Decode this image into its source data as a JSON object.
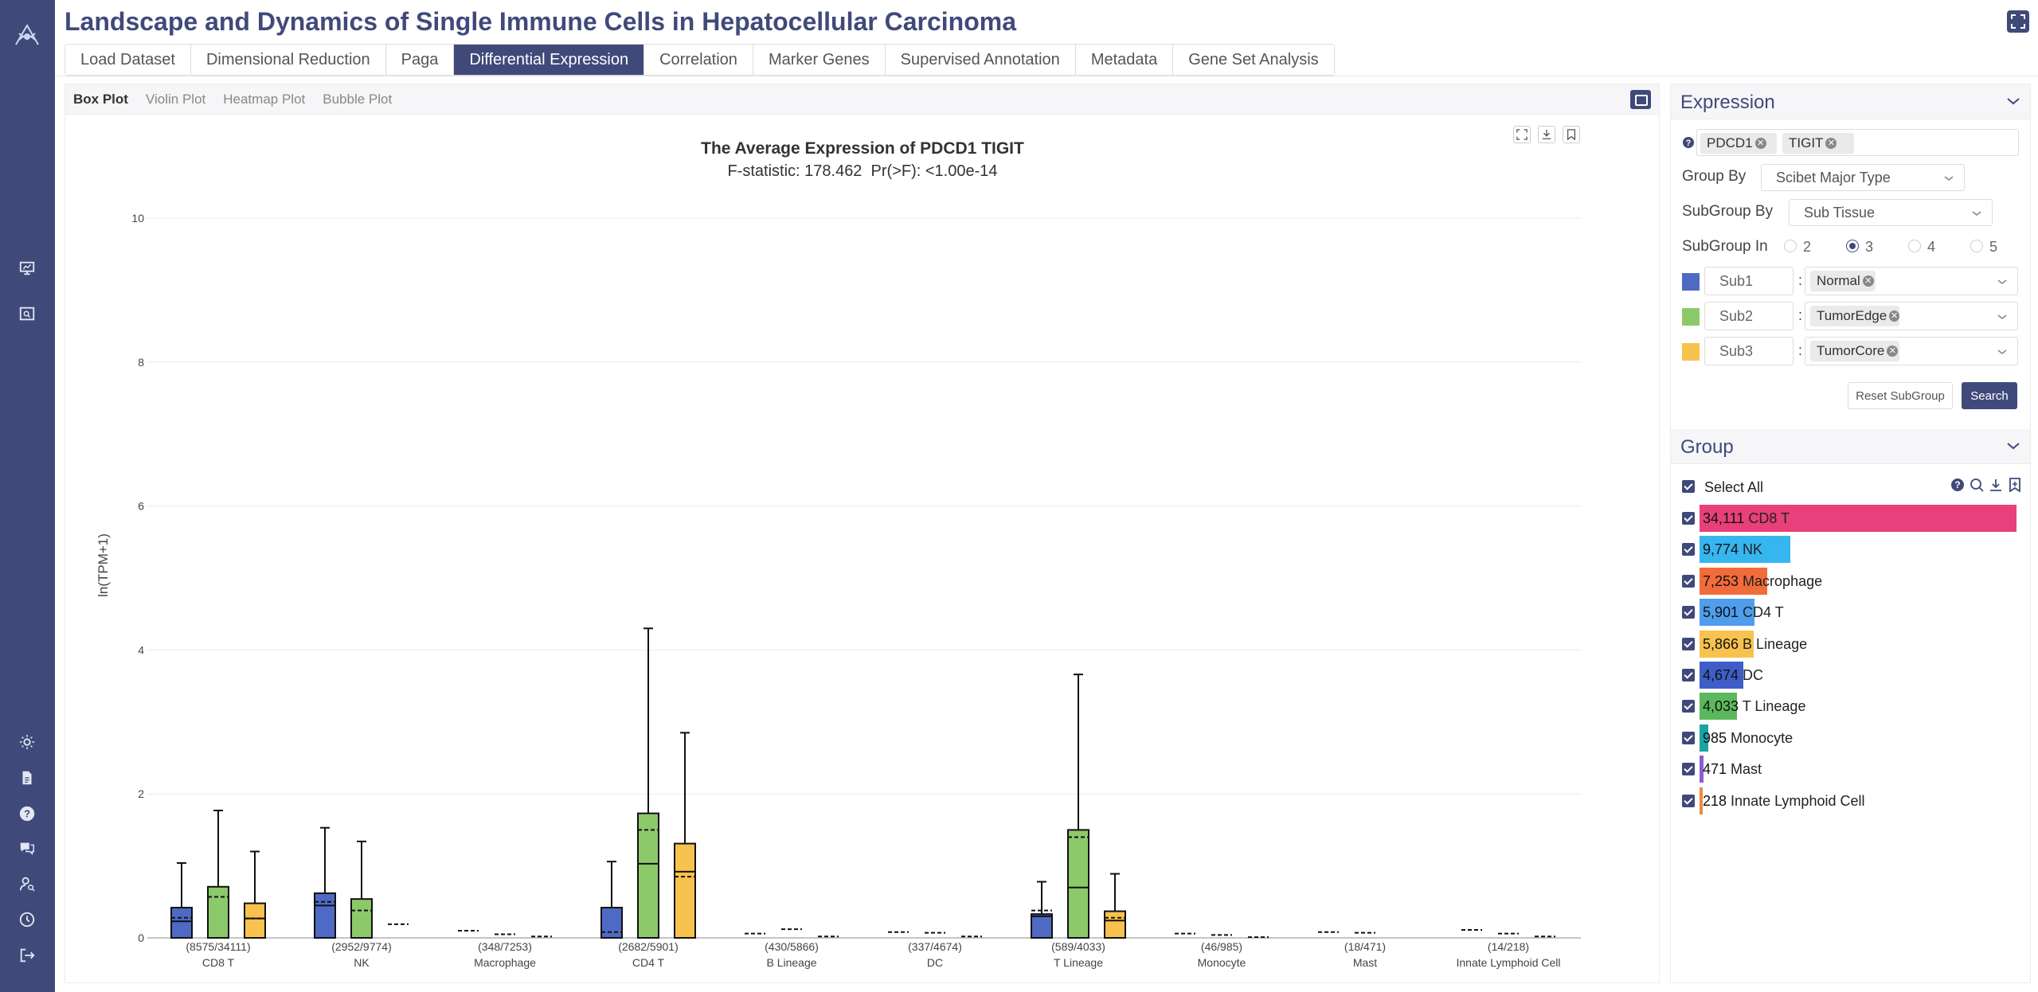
{
  "app": {
    "title": "Landscape and Dynamics of Single Immune Cells in Hepatocellular Carcinoma",
    "brand_color": "#3f4a7a"
  },
  "sidebar": {
    "icons": [
      "logo-icon",
      "presentation-chart-icon",
      "image-search-icon",
      "brightness-icon",
      "document-icon",
      "help-icon",
      "chat-icon",
      "user-search-icon",
      "history-icon",
      "logout-icon"
    ]
  },
  "tabs": [
    {
      "label": "Load Dataset",
      "active": false
    },
    {
      "label": "Dimensional Reduction",
      "active": false
    },
    {
      "label": "Paga",
      "active": false
    },
    {
      "label": "Differential Expression",
      "active": true
    },
    {
      "label": "Correlation",
      "active": false
    },
    {
      "label": "Marker Genes",
      "active": false
    },
    {
      "label": "Supervised Annotation",
      "active": false
    },
    {
      "label": "Metadata",
      "active": false
    },
    {
      "label": "Gene Set Analysis",
      "active": false
    }
  ],
  "subtabs": [
    {
      "label": "Box Plot",
      "active": true
    },
    {
      "label": "Violin Plot",
      "active": false
    },
    {
      "label": "Heatmap Plot",
      "active": false
    },
    {
      "label": "Bubble Plot",
      "active": false
    }
  ],
  "chart_tools": [
    "fullscreen-icon",
    "download-icon",
    "bookmark-icon"
  ],
  "chart_data": {
    "type": "box",
    "title": "The Average Expression of PDCD1 TIGIT",
    "subtitle": "F-statistic: 178.462  Pr(>F): <1.00e-14",
    "ylabel": "ln(TPM+1)",
    "xlabel": "",
    "ylim": [
      0,
      10
    ],
    "yticks": [
      0,
      2,
      4,
      6,
      8,
      10
    ],
    "grid": true,
    "categories": [
      "CD8 T",
      "NK",
      "Macrophage",
      "CD4 T",
      "B Lineage",
      "DC",
      "T Lineage",
      "Monocyte",
      "Mast",
      "Innate Lymphoid Cell"
    ],
    "counts": [
      "(8575/34111)",
      "(2952/9774)",
      "(348/7253)",
      "(2682/5901)",
      "(430/5866)",
      "(337/4674)",
      "(589/4033)",
      "(46/985)",
      "(18/471)",
      "(14/218)"
    ],
    "series": [
      {
        "name": "Sub1",
        "color": "#4f6ac4",
        "boxes": [
          {
            "min": 0,
            "q1": 0,
            "median": 0.23,
            "mean": 0.28,
            "q3": 0.42,
            "max": 1.04
          },
          {
            "min": 0,
            "q1": 0,
            "median": 0.45,
            "mean": 0.5,
            "q3": 0.62,
            "max": 1.53
          },
          {
            "min": 0,
            "q1": 0,
            "median": 0,
            "mean": 0.1,
            "q3": 0,
            "max": 0
          },
          {
            "min": 0,
            "q1": 0,
            "median": 0,
            "mean": 0.08,
            "q3": 0.42,
            "max": 1.06
          },
          {
            "min": 0,
            "q1": 0,
            "median": 0,
            "mean": 0.06,
            "q3": 0,
            "max": 0
          },
          {
            "min": 0,
            "q1": 0,
            "median": 0,
            "mean": 0.08,
            "q3": 0,
            "max": 0
          },
          {
            "min": 0,
            "q1": 0,
            "median": 0.3,
            "mean": 0.38,
            "q3": 0.33,
            "max": 0.78
          },
          {
            "min": 0,
            "q1": 0,
            "median": 0,
            "mean": 0.06,
            "q3": 0,
            "max": 0
          },
          {
            "min": 0,
            "q1": 0,
            "median": 0,
            "mean": 0.08,
            "q3": 0,
            "max": 0
          },
          {
            "min": 0,
            "q1": 0,
            "median": 0,
            "mean": 0.11,
            "q3": 0,
            "max": 0
          }
        ]
      },
      {
        "name": "Sub2",
        "color": "#8cc96a",
        "boxes": [
          {
            "min": 0,
            "q1": 0,
            "median": 0,
            "mean": 0.57,
            "q3": 0.71,
            "max": 1.77
          },
          {
            "min": 0,
            "q1": 0,
            "median": 0,
            "mean": 0.38,
            "q3": 0.54,
            "max": 1.34
          },
          {
            "min": 0,
            "q1": 0,
            "median": 0,
            "mean": 0.05,
            "q3": 0,
            "max": 0
          },
          {
            "min": 0,
            "q1": 0,
            "median": 1.03,
            "mean": 1.5,
            "q3": 1.73,
            "max": 4.3
          },
          {
            "min": 0,
            "q1": 0,
            "median": 0,
            "mean": 0.12,
            "q3": 0,
            "max": 0
          },
          {
            "min": 0,
            "q1": 0,
            "median": 0,
            "mean": 0.07,
            "q3": 0,
            "max": 0
          },
          {
            "min": 0,
            "q1": 0,
            "median": 0.7,
            "mean": 1.4,
            "q3": 1.5,
            "max": 3.66
          },
          {
            "min": 0,
            "q1": 0,
            "median": 0,
            "mean": 0.04,
            "q3": 0,
            "max": 0
          },
          {
            "min": 0,
            "q1": 0,
            "median": 0,
            "mean": 0.07,
            "q3": 0,
            "max": 0
          },
          {
            "min": 0,
            "q1": 0,
            "median": 0,
            "mean": 0.06,
            "q3": 0,
            "max": 0
          }
        ]
      },
      {
        "name": "Sub3",
        "color": "#f7c24d",
        "boxes": [
          {
            "min": 0,
            "q1": 0,
            "median": 0.27,
            "mean": 0.27,
            "q3": 0.48,
            "max": 1.2
          },
          {
            "min": 0,
            "q1": 0,
            "median": 0,
            "mean": 0.19,
            "q3": 0,
            "max": 0
          },
          {
            "min": 0,
            "q1": 0,
            "median": 0,
            "mean": 0.02,
            "q3": 0,
            "max": 0
          },
          {
            "min": 0,
            "q1": 0,
            "median": 0.92,
            "mean": 0.85,
            "q3": 1.31,
            "max": 2.85
          },
          {
            "min": 0,
            "q1": 0,
            "median": 0,
            "mean": 0.02,
            "q3": 0,
            "max": 0
          },
          {
            "min": 0,
            "q1": 0,
            "median": 0,
            "mean": 0.02,
            "q3": 0,
            "max": 0
          },
          {
            "min": 0,
            "q1": 0,
            "median": 0.24,
            "mean": 0.28,
            "q3": 0.37,
            "max": 0.89
          },
          {
            "min": 0,
            "q1": 0,
            "median": 0,
            "mean": 0.01,
            "q3": 0,
            "max": 0
          },
          {
            "min": 0,
            "q1": 0,
            "median": 0,
            "mean": 0,
            "q3": 0,
            "max": 0
          },
          {
            "min": 0,
            "q1": 0,
            "median": 0,
            "mean": 0.02,
            "q3": 0,
            "max": 0
          }
        ]
      }
    ]
  },
  "expression": {
    "title": "Expression",
    "help_icon": "help-icon",
    "genes": [
      "PDCD1",
      "TIGIT"
    ],
    "group_by_label": "Group By",
    "group_by_value": "Scibet Major Type",
    "subgroup_by_label": "SubGroup By",
    "subgroup_by_value": "Sub Tissue",
    "subgroup_in_label": "SubGroup In",
    "subgroup_in_options": [
      "2",
      "3",
      "4",
      "5"
    ],
    "subgroup_in_selected": "3",
    "subgroups": [
      {
        "name": "Sub1",
        "value": "Normal",
        "color": "#4f6ac4"
      },
      {
        "name": "Sub2",
        "value": "TumorEdge",
        "color": "#8cc96a"
      },
      {
        "name": "Sub3",
        "value": "TumorCore",
        "color": "#f7c24d"
      }
    ],
    "colon": ":",
    "reset_label": "Reset SubGroup",
    "search_label": "Search"
  },
  "group": {
    "title": "Group",
    "select_all_label": "Select All",
    "tools": [
      "help-icon",
      "search-icon",
      "download-icon",
      "bookmark-icon"
    ],
    "items": [
      {
        "count": "34,111",
        "label": "CD8 T",
        "value": 34111,
        "color": "#e8407a"
      },
      {
        "count": "9,774",
        "label": "NK",
        "value": 9774,
        "color": "#35b6ef"
      },
      {
        "count": "7,253",
        "label": "Macrophage",
        "value": 7253,
        "color": "#f26b3a"
      },
      {
        "count": "5,901",
        "label": "CD4 T",
        "value": 5901,
        "color": "#4f9ded"
      },
      {
        "count": "5,866",
        "label": "B Lineage",
        "value": 5866,
        "color": "#f7c24d"
      },
      {
        "count": "4,674",
        "label": "DC",
        "value": 4674,
        "color": "#3f5dc6"
      },
      {
        "count": "4,033",
        "label": "T Lineage",
        "value": 4033,
        "color": "#5cb85c"
      },
      {
        "count": "985",
        "label": "Monocyte",
        "value": 985,
        "color": "#1aa3a3"
      },
      {
        "count": "471",
        "label": "Mast",
        "value": 471,
        "color": "#8a5cd6"
      },
      {
        "count": "218",
        "label": "Innate Lymphoid Cell",
        "value": 218,
        "color": "#f08a3a"
      }
    ]
  }
}
